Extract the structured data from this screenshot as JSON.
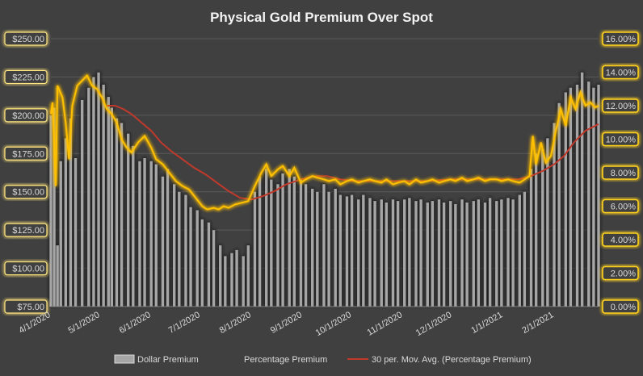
{
  "chart_data": {
    "type": "bar+line",
    "title": "Physical Gold Premium Over Spot",
    "x_start": "2020-04-01",
    "x_end": "2021-02-28",
    "x_tick_labels": [
      "4/1/2020",
      "5/1/2020",
      "6/1/2020",
      "7/1/2020",
      "8/1/2020",
      "9/1/2020",
      "10/1/2020",
      "11/1/2020",
      "12/1/2020",
      "1/1/2021",
      "2/1/2021"
    ],
    "x_tick_dates": [
      "2020-04-01",
      "2020-05-01",
      "2020-06-01",
      "2020-07-01",
      "2020-08-01",
      "2020-09-01",
      "2020-10-01",
      "2020-11-01",
      "2020-12-01",
      "2021-01-01",
      "2021-02-01"
    ],
    "y_left": {
      "min": 75,
      "max": 250,
      "step": 25,
      "labels": [
        "$75.00",
        "$100.00",
        "$125.00",
        "$150.00",
        "$175.00",
        "$200.00",
        "$225.00",
        "$250.00"
      ]
    },
    "y_right": {
      "min": 0,
      "max": 16,
      "step": 2,
      "labels": [
        "0.00%",
        "2.00%",
        "4.00%",
        "6.00%",
        "8.00%",
        "10.00%",
        "12.00%",
        "14.00%",
        "16.00%"
      ]
    },
    "grid": true,
    "legend_position": "bottom",
    "series": [
      {
        "name": "Dollar Premium",
        "kind": "bar",
        "axis": "left",
        "color": "#A6A6A6",
        "points": [
          [
            "2020-04-01",
            200
          ],
          [
            "2020-04-03",
            205
          ],
          [
            "2020-04-05",
            115
          ],
          [
            "2020-04-07",
            170
          ],
          [
            "2020-04-10",
            185
          ],
          [
            "2020-04-13",
            198
          ],
          [
            "2020-04-16",
            172
          ],
          [
            "2020-04-20",
            210
          ],
          [
            "2020-04-24",
            218
          ],
          [
            "2020-04-27",
            225
          ],
          [
            "2020-04-30",
            228
          ],
          [
            "2020-05-03",
            220
          ],
          [
            "2020-05-06",
            212
          ],
          [
            "2020-05-08",
            205
          ],
          [
            "2020-05-11",
            198
          ],
          [
            "2020-05-14",
            195
          ],
          [
            "2020-05-18",
            188
          ],
          [
            "2020-05-21",
            180
          ],
          [
            "2020-05-25",
            170
          ],
          [
            "2020-05-28",
            172
          ],
          [
            "2020-06-01",
            170
          ],
          [
            "2020-06-04",
            168
          ],
          [
            "2020-06-08",
            160
          ],
          [
            "2020-06-11",
            165
          ],
          [
            "2020-06-15",
            155
          ],
          [
            "2020-06-18",
            150
          ],
          [
            "2020-06-22",
            148
          ],
          [
            "2020-06-25",
            140
          ],
          [
            "2020-06-29",
            138
          ],
          [
            "2020-07-02",
            132
          ],
          [
            "2020-07-06",
            130
          ],
          [
            "2020-07-09",
            125
          ],
          [
            "2020-07-13",
            115
          ],
          [
            "2020-07-16",
            108
          ],
          [
            "2020-07-20",
            110
          ],
          [
            "2020-07-23",
            112
          ],
          [
            "2020-07-27",
            108
          ],
          [
            "2020-07-30",
            115
          ],
          [
            "2020-08-03",
            150
          ],
          [
            "2020-08-06",
            160
          ],
          [
            "2020-08-10",
            165
          ],
          [
            "2020-08-13",
            158
          ],
          [
            "2020-08-17",
            155
          ],
          [
            "2020-08-20",
            162
          ],
          [
            "2020-08-24",
            165
          ],
          [
            "2020-08-27",
            160
          ],
          [
            "2020-08-31",
            158
          ],
          [
            "2020-09-03",
            155
          ],
          [
            "2020-09-07",
            152
          ],
          [
            "2020-09-10",
            150
          ],
          [
            "2020-09-14",
            155
          ],
          [
            "2020-09-17",
            150
          ],
          [
            "2020-09-21",
            152
          ],
          [
            "2020-09-24",
            148
          ],
          [
            "2020-09-28",
            147
          ],
          [
            "2020-10-01",
            148
          ],
          [
            "2020-10-05",
            145
          ],
          [
            "2020-10-08",
            148
          ],
          [
            "2020-10-12",
            146
          ],
          [
            "2020-10-15",
            144
          ],
          [
            "2020-10-19",
            145
          ],
          [
            "2020-10-22",
            143
          ],
          [
            "2020-10-26",
            145
          ],
          [
            "2020-10-29",
            144
          ],
          [
            "2020-11-02",
            145
          ],
          [
            "2020-11-05",
            146
          ],
          [
            "2020-11-09",
            144
          ],
          [
            "2020-11-12",
            145
          ],
          [
            "2020-11-16",
            143
          ],
          [
            "2020-11-19",
            144
          ],
          [
            "2020-11-23",
            145
          ],
          [
            "2020-11-26",
            143
          ],
          [
            "2020-11-30",
            144
          ],
          [
            "2020-12-03",
            142
          ],
          [
            "2020-12-07",
            145
          ],
          [
            "2020-12-10",
            143
          ],
          [
            "2020-12-14",
            144
          ],
          [
            "2020-12-17",
            145
          ],
          [
            "2020-12-21",
            143
          ],
          [
            "2020-12-24",
            146
          ],
          [
            "2020-12-28",
            144
          ],
          [
            "2020-12-31",
            145
          ],
          [
            "2021-01-04",
            146
          ],
          [
            "2021-01-07",
            145
          ],
          [
            "2021-01-11",
            148
          ],
          [
            "2021-01-14",
            150
          ],
          [
            "2021-01-18",
            165
          ],
          [
            "2021-01-21",
            175
          ],
          [
            "2021-01-25",
            178
          ],
          [
            "2021-01-28",
            185
          ],
          [
            "2021-02-01",
            195
          ],
          [
            "2021-02-04",
            208
          ],
          [
            "2021-02-08",
            215
          ],
          [
            "2021-02-11",
            218
          ],
          [
            "2021-02-15",
            220
          ],
          [
            "2021-02-18",
            228
          ],
          [
            "2021-02-22",
            222
          ],
          [
            "2021-02-25",
            218
          ],
          [
            "2021-02-28",
            220
          ]
        ]
      },
      {
        "name": "Percentage Premium",
        "kind": "line",
        "axis": "right",
        "color": "#FFC000",
        "points": [
          [
            "2020-04-01",
            11.5
          ],
          [
            "2020-04-02",
            12.2
          ],
          [
            "2020-04-04",
            7.2
          ],
          [
            "2020-04-05",
            13.2
          ],
          [
            "2020-04-08",
            12.5
          ],
          [
            "2020-04-10",
            11.0
          ],
          [
            "2020-04-12",
            8.8
          ],
          [
            "2020-04-14",
            12.0
          ],
          [
            "2020-04-17",
            13.2
          ],
          [
            "2020-04-20",
            13.5
          ],
          [
            "2020-04-23",
            13.8
          ],
          [
            "2020-04-26",
            13.2
          ],
          [
            "2020-04-29",
            13.0
          ],
          [
            "2020-05-02",
            12.5
          ],
          [
            "2020-05-05",
            11.8
          ],
          [
            "2020-05-08",
            11.5
          ],
          [
            "2020-05-11",
            11.0
          ],
          [
            "2020-05-14",
            10.0
          ],
          [
            "2020-05-17",
            9.5
          ],
          [
            "2020-05-20",
            9.2
          ],
          [
            "2020-05-24",
            9.8
          ],
          [
            "2020-05-28",
            10.2
          ],
          [
            "2020-06-01",
            9.5
          ],
          [
            "2020-06-04",
            8.8
          ],
          [
            "2020-06-08",
            8.5
          ],
          [
            "2020-06-12",
            8.0
          ],
          [
            "2020-06-16",
            7.5
          ],
          [
            "2020-06-20",
            7.2
          ],
          [
            "2020-06-24",
            7.0
          ],
          [
            "2020-06-28",
            6.5
          ],
          [
            "2020-07-02",
            6.0
          ],
          [
            "2020-07-05",
            5.8
          ],
          [
            "2020-07-09",
            5.9
          ],
          [
            "2020-07-12",
            5.8
          ],
          [
            "2020-07-15",
            6.0
          ],
          [
            "2020-07-18",
            5.9
          ],
          [
            "2020-07-22",
            6.1
          ],
          [
            "2020-07-26",
            6.2
          ],
          [
            "2020-07-30",
            6.3
          ],
          [
            "2020-08-03",
            7.2
          ],
          [
            "2020-08-07",
            8.0
          ],
          [
            "2020-08-10",
            8.5
          ],
          [
            "2020-08-13",
            7.8
          ],
          [
            "2020-08-17",
            8.2
          ],
          [
            "2020-08-20",
            8.4
          ],
          [
            "2020-08-24",
            7.8
          ],
          [
            "2020-08-27",
            8.3
          ],
          [
            "2020-08-31",
            7.4
          ],
          [
            "2020-09-03",
            7.6
          ],
          [
            "2020-09-07",
            7.8
          ],
          [
            "2020-09-10",
            7.7
          ],
          [
            "2020-09-14",
            7.6
          ],
          [
            "2020-09-17",
            7.5
          ],
          [
            "2020-09-21",
            7.6
          ],
          [
            "2020-09-24",
            7.3
          ],
          [
            "2020-09-28",
            7.5
          ],
          [
            "2020-10-01",
            7.6
          ],
          [
            "2020-10-05",
            7.4
          ],
          [
            "2020-10-08",
            7.5
          ],
          [
            "2020-10-12",
            7.6
          ],
          [
            "2020-10-15",
            7.5
          ],
          [
            "2020-10-19",
            7.4
          ],
          [
            "2020-10-22",
            7.6
          ],
          [
            "2020-10-26",
            7.3
          ],
          [
            "2020-10-29",
            7.4
          ],
          [
            "2020-11-02",
            7.5
          ],
          [
            "2020-11-05",
            7.3
          ],
          [
            "2020-11-09",
            7.6
          ],
          [
            "2020-11-12",
            7.4
          ],
          [
            "2020-11-16",
            7.5
          ],
          [
            "2020-11-19",
            7.6
          ],
          [
            "2020-11-23",
            7.4
          ],
          [
            "2020-11-26",
            7.5
          ],
          [
            "2020-11-30",
            7.6
          ],
          [
            "2020-12-03",
            7.5
          ],
          [
            "2020-12-07",
            7.7
          ],
          [
            "2020-12-10",
            7.5
          ],
          [
            "2020-12-14",
            7.6
          ],
          [
            "2020-12-17",
            7.7
          ],
          [
            "2020-12-21",
            7.5
          ],
          [
            "2020-12-24",
            7.6
          ],
          [
            "2020-12-28",
            7.6
          ],
          [
            "2020-12-31",
            7.5
          ],
          [
            "2021-01-04",
            7.6
          ],
          [
            "2021-01-07",
            7.5
          ],
          [
            "2021-01-11",
            7.4
          ],
          [
            "2021-01-14",
            7.6
          ],
          [
            "2021-01-17",
            7.8
          ],
          [
            "2021-01-19",
            10.2
          ],
          [
            "2021-01-21",
            8.5
          ],
          [
            "2021-01-24",
            9.8
          ],
          [
            "2021-01-27",
            8.6
          ],
          [
            "2021-01-30",
            9.0
          ],
          [
            "2021-02-02",
            10.5
          ],
          [
            "2021-02-05",
            11.8
          ],
          [
            "2021-02-08",
            10.8
          ],
          [
            "2021-02-11",
            12.5
          ],
          [
            "2021-02-14",
            11.8
          ],
          [
            "2021-02-17",
            12.8
          ],
          [
            "2021-02-20",
            12.0
          ],
          [
            "2021-02-23",
            12.2
          ],
          [
            "2021-02-26",
            11.9
          ],
          [
            "2021-02-28",
            12.0
          ]
        ]
      },
      {
        "name": "30 per. Mov. Avg. (Percentage Premium)",
        "kind": "line",
        "axis": "right",
        "color": "#C0392B",
        "points": [
          [
            "2020-05-05",
            12.0
          ],
          [
            "2020-05-10",
            12.0
          ],
          [
            "2020-05-15",
            11.8
          ],
          [
            "2020-05-20",
            11.5
          ],
          [
            "2020-05-26",
            11.0
          ],
          [
            "2020-06-01",
            10.5
          ],
          [
            "2020-06-07",
            9.8
          ],
          [
            "2020-06-13",
            9.3
          ],
          [
            "2020-06-20",
            8.8
          ],
          [
            "2020-06-27",
            8.3
          ],
          [
            "2020-07-04",
            7.9
          ],
          [
            "2020-07-11",
            7.4
          ],
          [
            "2020-07-18",
            6.9
          ],
          [
            "2020-07-25",
            6.5
          ],
          [
            "2020-08-01",
            6.4
          ],
          [
            "2020-08-08",
            6.6
          ],
          [
            "2020-08-15",
            6.9
          ],
          [
            "2020-08-22",
            7.3
          ],
          [
            "2020-08-31",
            7.6
          ],
          [
            "2020-09-08",
            7.8
          ],
          [
            "2020-09-16",
            7.8
          ],
          [
            "2020-09-24",
            7.6
          ],
          [
            "2020-10-02",
            7.5
          ],
          [
            "2020-10-15",
            7.5
          ],
          [
            "2020-11-01",
            7.5
          ],
          [
            "2020-11-15",
            7.5
          ],
          [
            "2020-12-01",
            7.6
          ],
          [
            "2020-12-15",
            7.6
          ],
          [
            "2021-01-01",
            7.6
          ],
          [
            "2021-01-10",
            7.6
          ],
          [
            "2021-01-18",
            7.8
          ],
          [
            "2021-01-25",
            8.1
          ],
          [
            "2021-02-01",
            8.5
          ],
          [
            "2021-02-07",
            9.0
          ],
          [
            "2021-02-13",
            9.8
          ],
          [
            "2021-02-20",
            10.5
          ],
          [
            "2021-02-28",
            10.9
          ]
        ]
      }
    ]
  }
}
